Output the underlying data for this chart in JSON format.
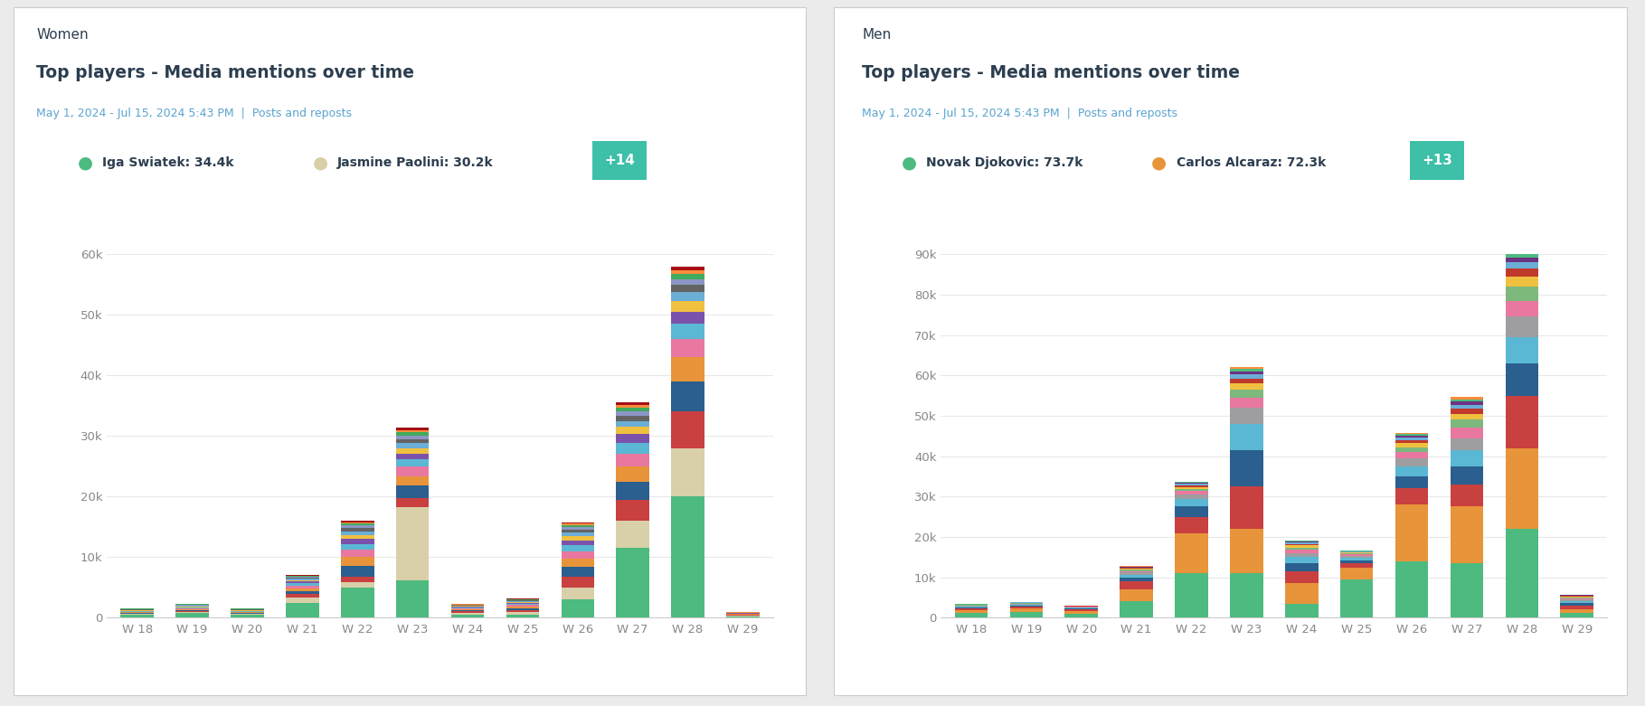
{
  "women": {
    "title_category": "Women",
    "title": "Top players - Media mentions over time",
    "subtitle": "May 1, 2024 - Jul 15, 2024 5:43 PM  |  Posts and reposts",
    "legend1": "Iga Swiatek: 34.4k",
    "legend2": "Jasmine Paolini: 30.2k",
    "legend_btn": "+14",
    "legend1_color": "#4dba7f",
    "legend2_color": "#d9cfa8",
    "weeks": [
      "W 18",
      "W 19",
      "W 20",
      "W 21",
      "W 22",
      "W 23",
      "W 24",
      "W 25",
      "W 26",
      "W 27",
      "W 28",
      "W 29"
    ],
    "ylim": [
      0,
      60000
    ],
    "ytick_vals": [
      0,
      10000,
      20000,
      30000,
      40000,
      50000,
      60000
    ],
    "ytick_labels": [
      "0",
      "10k",
      "20k",
      "30k",
      "40k",
      "50k",
      "60k"
    ],
    "stacks": [
      [
        500,
        800,
        500,
        2500,
        5000,
        6200,
        500,
        500,
        3000,
        11500,
        20000,
        200
      ],
      [
        100,
        200,
        100,
        800,
        900,
        12000,
        300,
        400,
        2000,
        4500,
        8000,
        150
      ],
      [
        100,
        150,
        100,
        600,
        800,
        1600,
        250,
        350,
        1800,
        3500,
        6000,
        100
      ],
      [
        100,
        150,
        100,
        500,
        1800,
        2000,
        200,
        300,
        1600,
        3000,
        5000,
        80
      ],
      [
        80,
        150,
        100,
        500,
        1500,
        1500,
        180,
        280,
        1400,
        2500,
        4000,
        70
      ],
      [
        80,
        100,
        80,
        400,
        1200,
        1600,
        150,
        250,
        1200,
        2000,
        3000,
        60
      ],
      [
        80,
        100,
        80,
        350,
        1000,
        1200,
        130,
        200,
        1000,
        1800,
        2500,
        50
      ],
      [
        80,
        100,
        80,
        300,
        800,
        1000,
        120,
        180,
        800,
        1500,
        2000,
        40
      ],
      [
        80,
        100,
        80,
        250,
        700,
        900,
        100,
        150,
        700,
        1200,
        1700,
        35
      ],
      [
        80,
        100,
        80,
        200,
        600,
        800,
        80,
        130,
        600,
        1000,
        1500,
        30
      ],
      [
        80,
        100,
        80,
        180,
        500,
        700,
        70,
        110,
        500,
        850,
        1200,
        25
      ],
      [
        80,
        100,
        80,
        150,
        400,
        600,
        60,
        100,
        400,
        700,
        1000,
        20
      ],
      [
        80,
        80,
        60,
        120,
        300,
        500,
        50,
        80,
        300,
        600,
        800,
        15
      ],
      [
        50,
        60,
        50,
        100,
        250,
        400,
        40,
        70,
        250,
        500,
        700,
        12
      ],
      [
        30,
        50,
        30,
        80,
        200,
        350,
        30,
        60,
        200,
        400,
        550,
        10
      ]
    ],
    "colors": [
      "#4dba7f",
      "#d9cfa8",
      "#c94040",
      "#2a5f8f",
      "#e8943a",
      "#e878a0",
      "#5bb8d4",
      "#7b52ab",
      "#f0c040",
      "#6baed6",
      "#636363",
      "#8c96c6",
      "#41ab5d",
      "#fd8d3c",
      "#a50f15"
    ]
  },
  "men": {
    "title_category": "Men",
    "title": "Top players - Media mentions over time",
    "subtitle": "May 1, 2024 - Jul 15, 2024 5:43 PM  |  Posts and reposts",
    "legend1": "Novak Djokovic: 73.7k",
    "legend2": "Carlos Alcaraz: 72.3k",
    "legend_btn": "+13",
    "legend1_color": "#4dba7f",
    "legend2_color": "#e8943a",
    "weeks": [
      "W 18",
      "W 19",
      "W 20",
      "W 21",
      "W 22",
      "W 23",
      "W 24",
      "W 25",
      "W 26",
      "W 27",
      "W 28",
      "W 29"
    ],
    "ylim": [
      0,
      90000
    ],
    "ytick_vals": [
      0,
      10000,
      20000,
      30000,
      40000,
      50000,
      60000,
      70000,
      80000,
      90000
    ],
    "ytick_labels": [
      "0",
      "10k",
      "20k",
      "30k",
      "40k",
      "50k",
      "60k",
      "70k",
      "80k",
      "90k"
    ],
    "stacks": [
      [
        1200,
        1500,
        1000,
        4000,
        11000,
        11000,
        3500,
        9500,
        14000,
        13500,
        22000,
        1200
      ],
      [
        700,
        800,
        600,
        3000,
        10000,
        11000,
        5000,
        3000,
        14000,
        14000,
        20000,
        1000
      ],
      [
        400,
        500,
        400,
        2000,
        4000,
        10500,
        3000,
        1000,
        4000,
        5500,
        13000,
        800
      ],
      [
        300,
        300,
        250,
        1000,
        2500,
        9000,
        2000,
        700,
        3000,
        4500,
        8000,
        600
      ],
      [
        200,
        200,
        200,
        700,
        1800,
        6500,
        1500,
        600,
        2500,
        4000,
        6500,
        500
      ],
      [
        150,
        150,
        150,
        500,
        1200,
        4000,
        1000,
        500,
        2000,
        3000,
        5000,
        400
      ],
      [
        100,
        100,
        100,
        400,
        800,
        2500,
        800,
        350,
        1500,
        2500,
        4000,
        300
      ],
      [
        80,
        80,
        80,
        300,
        600,
        2000,
        600,
        280,
        1200,
        2000,
        3500,
        250
      ],
      [
        60,
        60,
        60,
        250,
        500,
        1500,
        500,
        200,
        1000,
        1500,
        2500,
        200
      ],
      [
        50,
        50,
        50,
        200,
        400,
        1200,
        400,
        150,
        800,
        1200,
        2000,
        150
      ],
      [
        40,
        40,
        40,
        150,
        300,
        1000,
        300,
        120,
        600,
        1000,
        1500,
        120
      ],
      [
        30,
        30,
        30,
        120,
        250,
        800,
        250,
        100,
        500,
        800,
        1200,
        100
      ],
      [
        25,
        25,
        25,
        100,
        200,
        600,
        200,
        80,
        400,
        600,
        1000,
        80
      ],
      [
        20,
        20,
        20,
        80,
        150,
        500,
        150,
        60,
        300,
        500,
        800,
        60
      ]
    ],
    "colors": [
      "#4dba7f",
      "#e8943a",
      "#c94040",
      "#2a5f8f",
      "#5bb8d4",
      "#9e9ea0",
      "#e878a0",
      "#7db87d",
      "#f0c040",
      "#c0392b",
      "#6baed6",
      "#6c3483",
      "#4dba7f",
      "#fd8d3c"
    ]
  },
  "bg_color": "#ebebeb",
  "panel_color": "#ffffff",
  "title_color": "#2c3e50",
  "subtitle_color": "#5ba4cf",
  "tick_color": "#888888",
  "grid_color": "#e8e8e8",
  "btn_color": "#3dbfa8"
}
